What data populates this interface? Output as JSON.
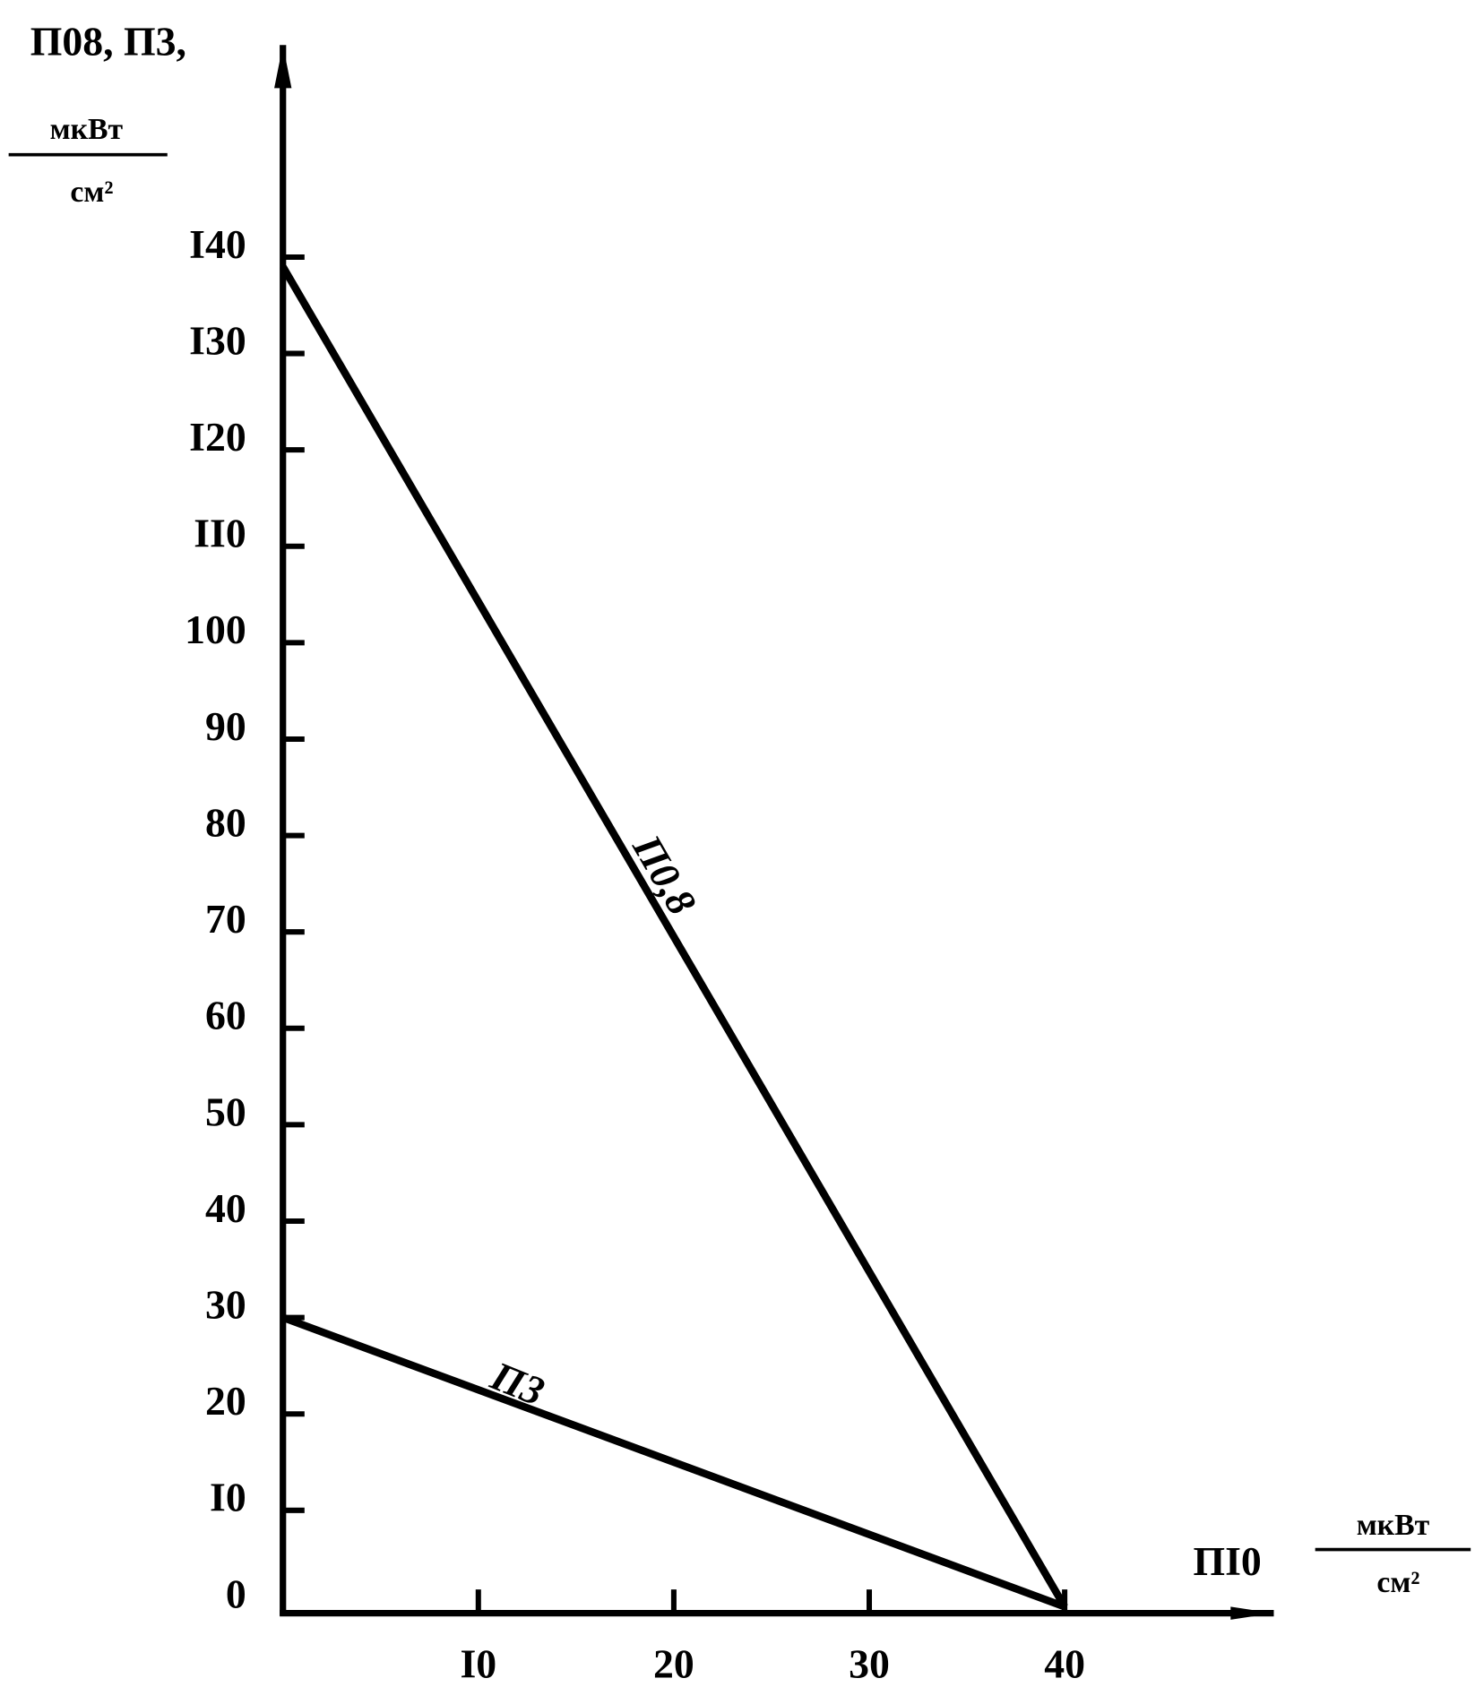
{
  "chart_data": {
    "type": "line",
    "y_label": "П08, П3,",
    "y_unit": {
      "numerator": "мкВт",
      "denominator": "см²"
    },
    "x_label": "ПI0",
    "x_unit": {
      "numerator": "мкВт",
      "denominator": "см²"
    },
    "x": [
      0,
      40
    ],
    "series": [
      {
        "name": "П0,8",
        "color": "#000000",
        "values": [
          139,
          0
        ]
      },
      {
        "name": "П3",
        "color": "#000000",
        "values": [
          30,
          0
        ]
      }
    ],
    "xlim": [
      0,
      50.7
    ],
    "ylim": [
      0,
      162
    ],
    "xticks": [
      {
        "value": 10,
        "label": "I0"
      },
      20,
      30,
      40
    ],
    "yticks": [
      0,
      {
        "value": 10,
        "label": "I0"
      },
      20,
      30,
      40,
      50,
      60,
      70,
      80,
      90,
      100,
      {
        "value": 110,
        "label": "II0"
      },
      {
        "value": 120,
        "label": "I20"
      },
      {
        "value": 130,
        "label": "I30"
      },
      {
        "value": 140,
        "label": "I40"
      }
    ],
    "grid": false
  }
}
